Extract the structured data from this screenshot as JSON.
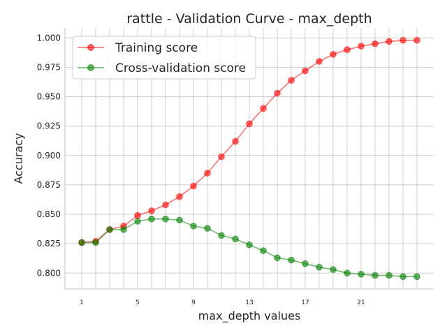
{
  "chart_data": {
    "type": "line",
    "title": "rattle - Validation Curve - max_depth",
    "xlabel": "max_depth values",
    "ylabel": "Accuracy",
    "x": [
      1,
      2,
      3,
      4,
      5,
      6,
      7,
      8,
      9,
      10,
      11,
      12,
      13,
      14,
      15,
      16,
      17,
      18,
      19,
      20,
      21,
      22,
      23,
      24,
      25
    ],
    "xticks": [
      1,
      5,
      9,
      13,
      17,
      21
    ],
    "xlim": [
      -0.2,
      26.2
    ],
    "yticks": [
      "0.800",
      "0.825",
      "0.850",
      "0.875",
      "0.900",
      "0.925",
      "0.950",
      "0.975",
      "1.000"
    ],
    "ylim": [
      0.7865,
      1.0085
    ],
    "grid": true,
    "legend_position": "top-left",
    "series": [
      {
        "name": "Training score",
        "color": "#ff0000",
        "values": [
          0.826,
          0.827,
          0.837,
          0.84,
          0.849,
          0.853,
          0.858,
          0.865,
          0.874,
          0.885,
          0.899,
          0.912,
          0.927,
          0.94,
          0.953,
          0.964,
          0.972,
          0.98,
          0.986,
          0.99,
          0.993,
          0.995,
          0.997,
          0.998,
          0.998
        ]
      },
      {
        "name": "Cross-validation score",
        "color": "#008000",
        "values": [
          0.826,
          0.826,
          0.837,
          0.837,
          0.844,
          0.846,
          0.846,
          0.845,
          0.84,
          0.838,
          0.832,
          0.829,
          0.824,
          0.819,
          0.813,
          0.811,
          0.808,
          0.805,
          0.803,
          0.8,
          0.799,
          0.798,
          0.798,
          0.797,
          0.797
        ]
      }
    ]
  }
}
